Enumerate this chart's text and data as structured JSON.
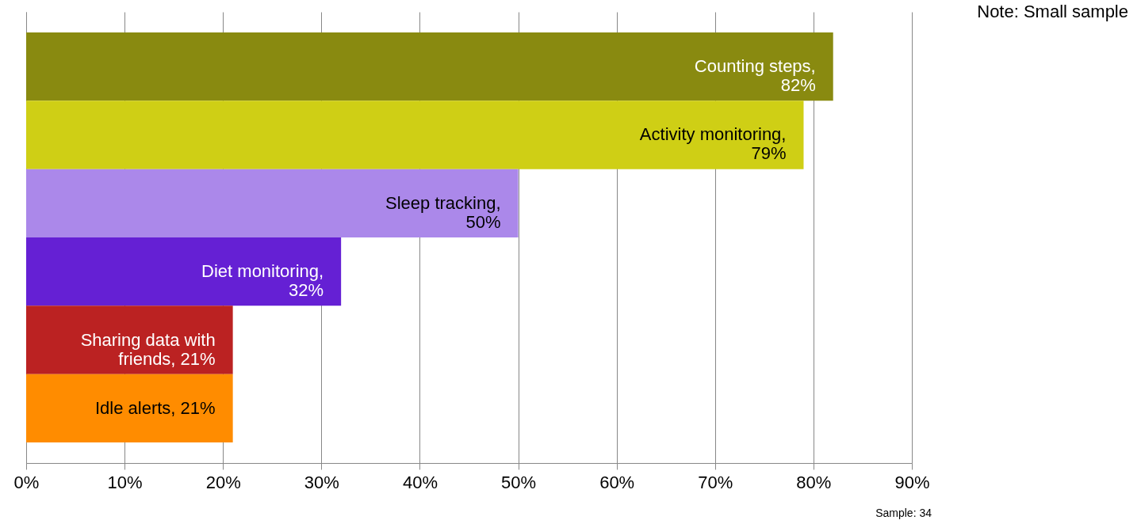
{
  "chart_data": {
    "type": "bar",
    "orientation": "horizontal",
    "categories": [
      null,
      null,
      null,
      null,
      null,
      null
    ],
    "values": [
      82,
      79,
      50,
      32,
      21,
      21
    ],
    "colors": [
      "#898a10",
      "#cfcf15",
      "#ab88ea",
      "#6520d4",
      "#bb2222",
      "#ff8c00"
    ],
    "value_labels": [
      "Counting steps,\n82%",
      "Activity monitoring,\n79%",
      "Sleep tracking,\n50%",
      "Diet monitoring,\n32%",
      "Sharing data with\nfriends, 21%",
      "Idle alerts, 21%"
    ],
    "xlim": [
      0,
      90
    ],
    "xticks": [
      {
        "value": 0,
        "label": "0%"
      },
      {
        "value": 10,
        "label": "10%"
      },
      {
        "value": 20,
        "label": "20%"
      },
      {
        "value": 30,
        "label": "30%"
      },
      {
        "value": 40,
        "label": "40%"
      },
      {
        "value": 50,
        "label": "50%"
      },
      {
        "value": 60,
        "label": "60%"
      },
      {
        "value": 70,
        "label": "70%"
      },
      {
        "value": 80,
        "label": "80%"
      },
      {
        "value": 90,
        "label": "90%"
      }
    ],
    "grid": "x",
    "annotations": [
      "Note: Small sample",
      "Sample: 34"
    ]
  }
}
